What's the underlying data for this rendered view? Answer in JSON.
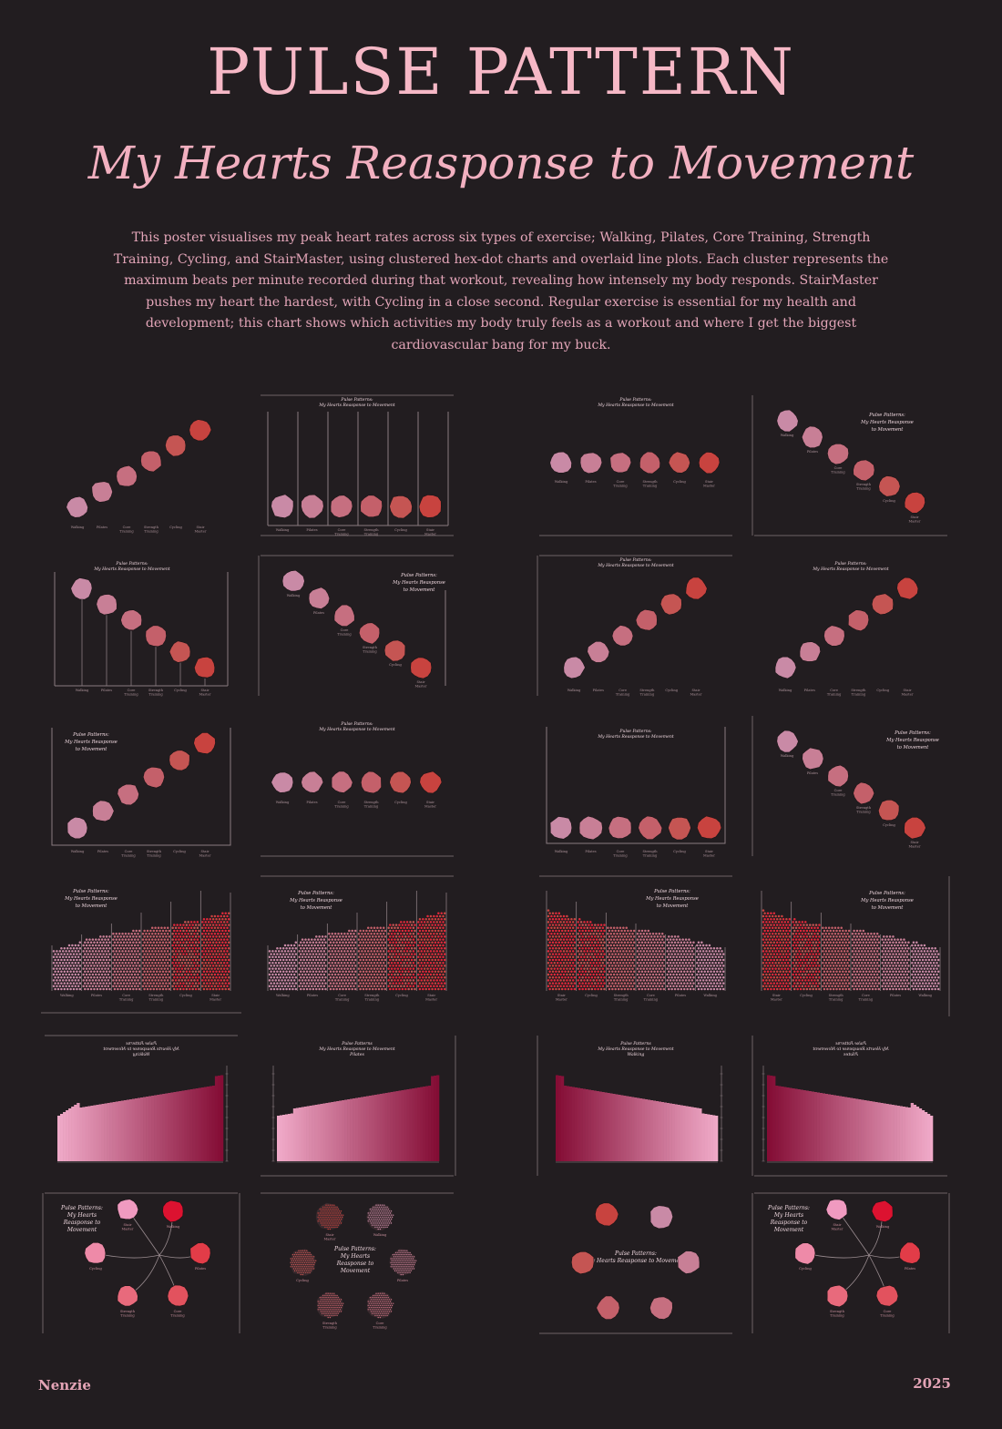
{
  "header": {
    "title": "PULSE PATTERN",
    "subtitle": "My Hearts Reasponse to Movement",
    "intro": "This poster visualises my peak heart rates across six types of exercise; Walking, Pilates, Core Training, Strength Training, Cycling, and StairMaster, using clustered hex-dot charts and overlaid line plots. Each cluster represents the maximum beats per minute recorded during that workout, revealing how intensely my body responds. StairMaster pushes my heart the hardest, with Cycling in a close second. Regular exercise is essential for my health and development; this chart shows which activities my body truly feels as a workout and where I get the biggest cardiovascular bang for my buck."
  },
  "chart_title": {
    "l1": "Pulse Patterns:",
    "full": "My Hearts Reasponse to Movement",
    "a": "My Hearts Reasponse",
    "b": "to Movement",
    "c": "My Hearts",
    "d": "Reasponse to",
    "e": "Movement",
    "bar_l1": "Pulse Patterns"
  },
  "categories": [
    {
      "name": "Walking",
      "lines": [
        "Walking"
      ],
      "color": "#c98aa6"
    },
    {
      "name": "Pilates",
      "lines": [
        "Pilates"
      ],
      "color": "#c87f96"
    },
    {
      "name": "Core Training",
      "lines": [
        "Core",
        "Training"
      ],
      "color": "#c66f80"
    },
    {
      "name": "Strength Training",
      "lines": [
        "Strength",
        "Training"
      ],
      "color": "#c4606a"
    },
    {
      "name": "Cycling",
      "lines": [
        "Cycling"
      ],
      "color": "#c55553"
    },
    {
      "name": "Stair Master",
      "lines": [
        "Stair",
        "Master"
      ],
      "color": "#c8433f"
    }
  ],
  "radial_colors": [
    "#f09ac0",
    "#ee8aa8",
    "#e86a7c",
    "#e2525e",
    "#e23c48",
    "#dc1230"
  ],
  "bar_panels": [
    {
      "subtitle": "Walking"
    },
    {
      "subtitle": "Pilates"
    },
    {
      "subtitle": "Walking"
    },
    {
      "subtitle": "Pilates"
    }
  ],
  "colors": {
    "background": "#221d20",
    "accent": "#f6b8c6",
    "frame": "#8a7c80"
  },
  "footer": {
    "author": "Nenzie",
    "year": "2025"
  }
}
